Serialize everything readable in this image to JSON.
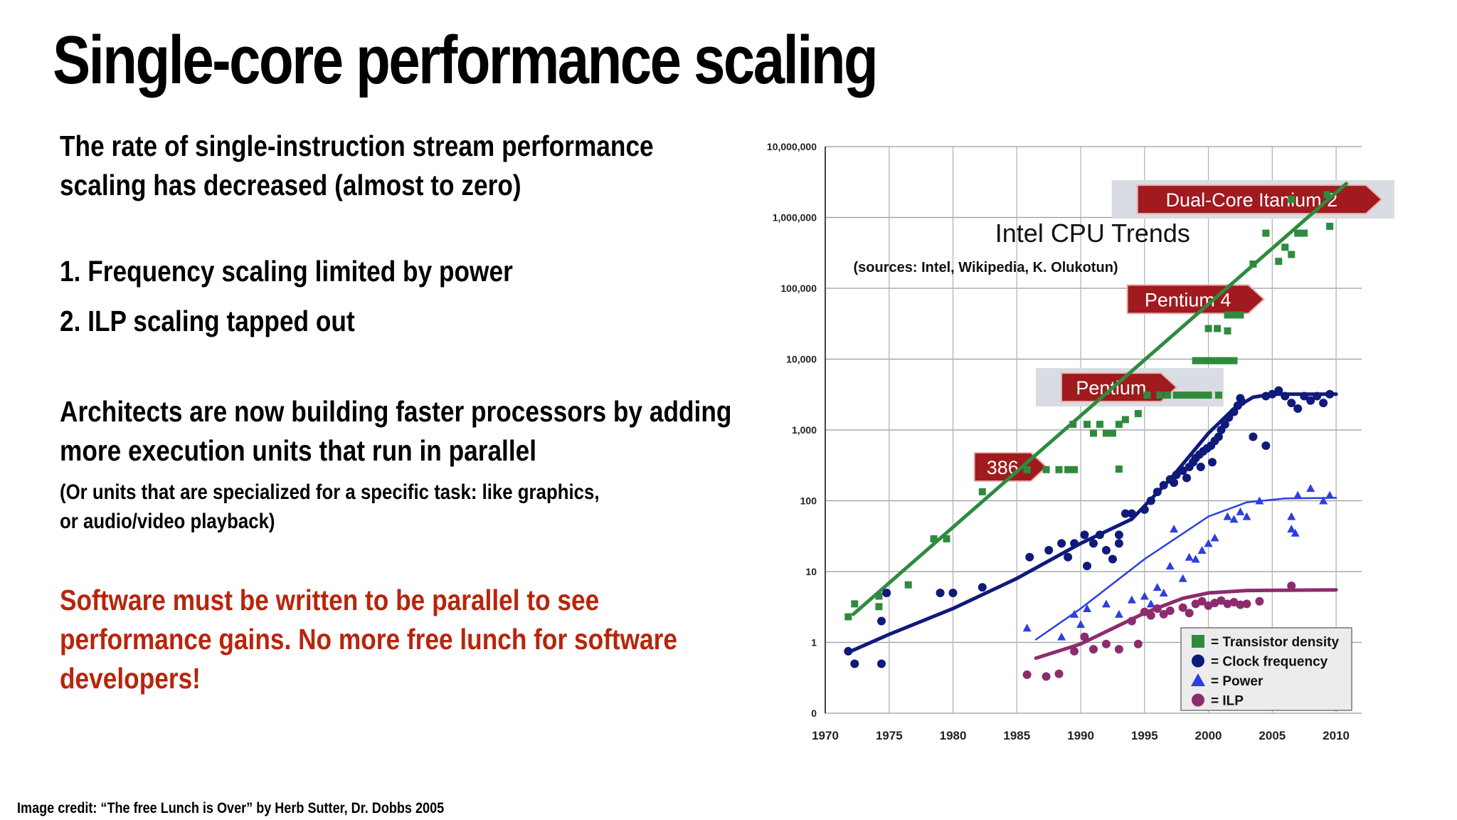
{
  "slide": {
    "title": "Single-core performance scaling",
    "para1_line1": "The rate of single-instruction stream performance",
    "para1_line2": "scaling has decreased (almost to zero)",
    "item1": "1. Frequency scaling limited by power",
    "item2": "2. ILP scaling tapped out",
    "para2_line1": "Architects are now building faster processors by adding",
    "para2_line2": "more execution units that run in parallel",
    "note_line1": "(Or units that are specialized for a specific task: like graphics,",
    "note_line2": "or audio/video playback)",
    "red_line1": "Software must be written to be parallel to see",
    "red_line2": "performance gains. No more free lunch for software",
    "red_line3": "developers!",
    "credit": "Image credit: “The free Lunch is Over” by Herb Sutter, Dr. Dobbs 2005"
  },
  "chart_data": {
    "type": "scatter",
    "title": "Intel CPU Trends",
    "subtitle": "(sources: Intel, Wikipedia, K. Olukotun)",
    "y_scale": "log",
    "xlim": [
      1970,
      2012
    ],
    "ylim": [
      0.1,
      10000000
    ],
    "x_ticks": [
      "1970",
      "1975",
      "1980",
      "1985",
      "1990",
      "1995",
      "2000",
      "2005",
      "2010"
    ],
    "y_ticks": [
      {
        "value": 0.1,
        "label": "0"
      },
      {
        "value": 1,
        "label": "1"
      },
      {
        "value": 10,
        "label": "10"
      },
      {
        "value": 100,
        "label": "100"
      },
      {
        "value": 1000,
        "label": "1,000"
      },
      {
        "value": 10000,
        "label": "10,000"
      },
      {
        "value": 100000,
        "label": "100,000"
      },
      {
        "value": 1000000,
        "label": "1,000,000"
      },
      {
        "value": 10000000,
        "label": "10,000,000"
      }
    ],
    "grid": true,
    "legend_position": "bottom-right",
    "annotations": [
      {
        "label": "386",
        "x": 1984.5,
        "y": 300,
        "boxed": false
      },
      {
        "label": "Pentium",
        "x": 1993,
        "y": 4000,
        "boxed": true
      },
      {
        "label": "Pentium 4",
        "x": 1999,
        "y": 70000,
        "boxed": false
      },
      {
        "label": "Dual-Core Itanium 2",
        "x": 2004,
        "y": 1800000,
        "boxed": true
      }
    ],
    "series": [
      {
        "name": "= Transistor density",
        "marker": "square",
        "color": "#2e8b3e",
        "trend": [
          [
            1972.2,
            2.5
          ],
          [
            2010.8,
            3000000
          ]
        ],
        "points": [
          [
            1971.8,
            2.3
          ],
          [
            1972.3,
            3.5
          ],
          [
            1974.2,
            4.5
          ],
          [
            1974.2,
            3.2
          ],
          [
            1976.5,
            6.5
          ],
          [
            1978.5,
            29
          ],
          [
            1979.5,
            29
          ],
          [
            1982.3,
            134
          ],
          [
            1985.8,
            275
          ],
          [
            1987.3,
            275
          ],
          [
            1988.3,
            275
          ],
          [
            1989,
            275
          ],
          [
            1989.5,
            275
          ],
          [
            1989.4,
            1200
          ],
          [
            1990.5,
            1200
          ],
          [
            1991,
            900
          ],
          [
            1991.5,
            1200
          ],
          [
            1992,
            900
          ],
          [
            1992.5,
            900
          ],
          [
            1993,
            1200
          ],
          [
            1993,
            280
          ],
          [
            1993.5,
            1400
          ],
          [
            1994.5,
            1700
          ],
          [
            1995.2,
            3100
          ],
          [
            1996.2,
            3100
          ],
          [
            1996.8,
            3100
          ],
          [
            1997.5,
            3100
          ],
          [
            1998,
            3100
          ],
          [
            1998.5,
            3100
          ],
          [
            1999,
            3100
          ],
          [
            1999.5,
            3100
          ],
          [
            2000,
            3100
          ],
          [
            2000.8,
            3100
          ],
          [
            1999,
            9500
          ],
          [
            1999.5,
            9500
          ],
          [
            2000,
            9500
          ],
          [
            2000.5,
            9500
          ],
          [
            2001,
            9500
          ],
          [
            2001.5,
            9500
          ],
          [
            2002,
            9500
          ],
          [
            2000,
            27000
          ],
          [
            2000.7,
            27000
          ],
          [
            2001.5,
            42000
          ],
          [
            2002,
            42000
          ],
          [
            2002.5,
            42000
          ],
          [
            2001.5,
            25000
          ],
          [
            2003.5,
            220000
          ],
          [
            2004.5,
            600000
          ],
          [
            2005.5,
            240000
          ],
          [
            2006,
            380000
          ],
          [
            2006.5,
            300000
          ],
          [
            2007,
            600000
          ],
          [
            2007.5,
            600000
          ],
          [
            2006.5,
            1800000
          ],
          [
            2009.3,
            2100000
          ],
          [
            2009.5,
            750000
          ]
        ]
      },
      {
        "name": "= Clock frequency",
        "marker": "circle",
        "color": "#0f1a7a",
        "trend": [
          [
            1972,
            0.75
          ],
          [
            1975,
            1.3
          ],
          [
            1980,
            3
          ],
          [
            1985,
            8
          ],
          [
            1990,
            25
          ],
          [
            1994,
            55
          ],
          [
            1997,
            200
          ],
          [
            2000,
            900
          ],
          [
            2002,
            2000
          ],
          [
            2003.5,
            2900
          ],
          [
            2005,
            3200
          ],
          [
            2010,
            3200
          ]
        ],
        "points": [
          [
            1971.8,
            0.75
          ],
          [
            1972.3,
            0.5
          ],
          [
            1974.4,
            0.5
          ],
          [
            1974.4,
            2
          ],
          [
            1974.8,
            5
          ],
          [
            1979,
            5
          ],
          [
            1980,
            5
          ],
          [
            1982.3,
            6
          ],
          [
            1986,
            16
          ],
          [
            1987.5,
            20
          ],
          [
            1988.5,
            25
          ],
          [
            1989,
            16
          ],
          [
            1989.5,
            25
          ],
          [
            1990.3,
            33
          ],
          [
            1990.5,
            12
          ],
          [
            1991,
            25
          ],
          [
            1991.5,
            33
          ],
          [
            1992,
            20
          ],
          [
            1992.5,
            15
          ],
          [
            1993,
            25
          ],
          [
            1993,
            33
          ],
          [
            1993.5,
            66
          ],
          [
            1994,
            66
          ],
          [
            1995,
            75
          ],
          [
            1995.5,
            100
          ],
          [
            1996,
            133
          ],
          [
            1996.5,
            166
          ],
          [
            1997,
            200
          ],
          [
            1997.5,
            233
          ],
          [
            1998,
            266
          ],
          [
            1998.5,
            300
          ],
          [
            1998.8,
            350
          ],
          [
            1999,
            400
          ],
          [
            1999.3,
            450
          ],
          [
            1999.6,
            500
          ],
          [
            1999.9,
            550
          ],
          [
            2000.2,
            600
          ],
          [
            2000.5,
            700
          ],
          [
            2000.8,
            800
          ],
          [
            2001,
            1000
          ],
          [
            2001.3,
            1200
          ],
          [
            2001.6,
            1500
          ],
          [
            2002,
            1800
          ],
          [
            2002.3,
            2200
          ],
          [
            2002.6,
            2500
          ],
          [
            2002.5,
            2800
          ],
          [
            1997.3,
            180
          ],
          [
            1998.3,
            210
          ],
          [
            1999.4,
            300
          ],
          [
            2000.3,
            350
          ],
          [
            2003.5,
            800
          ],
          [
            2004.5,
            600
          ],
          [
            2004.5,
            3000
          ],
          [
            2005,
            3200
          ],
          [
            2005.5,
            3600
          ],
          [
            2006,
            3000
          ],
          [
            2006.5,
            2400
          ],
          [
            2007,
            2000
          ],
          [
            2007.5,
            3000
          ],
          [
            2008,
            2600
          ],
          [
            2008.5,
            3000
          ],
          [
            2009,
            2400
          ],
          [
            2009.5,
            3200
          ]
        ]
      },
      {
        "name": "= Power",
        "marker": "triangle",
        "color": "#2c3fe0",
        "trend": [
          [
            1986.5,
            1.1
          ],
          [
            1990,
            3
          ],
          [
            1995,
            15
          ],
          [
            2000,
            60
          ],
          [
            2003,
            95
          ],
          [
            2006,
            108
          ],
          [
            2010,
            110
          ]
        ],
        "points": [
          [
            1985.8,
            1.6
          ],
          [
            1988.5,
            1.2
          ],
          [
            1989.5,
            2.5
          ],
          [
            1990,
            1.8
          ],
          [
            1990.5,
            3
          ],
          [
            1992,
            3.5
          ],
          [
            1993,
            2.5
          ],
          [
            1994,
            4
          ],
          [
            1995,
            4.5
          ],
          [
            1995.5,
            3.5
          ],
          [
            1996,
            6
          ],
          [
            1996.5,
            5
          ],
          [
            1997,
            12
          ],
          [
            1998,
            8
          ],
          [
            1998.5,
            16
          ],
          [
            1999,
            15
          ],
          [
            1999.5,
            20
          ],
          [
            2000,
            25
          ],
          [
            2000.5,
            30
          ],
          [
            1997.3,
            40
          ],
          [
            2001.5,
            60
          ],
          [
            2002,
            55
          ],
          [
            2002.5,
            70
          ],
          [
            2003,
            60
          ],
          [
            2004,
            100
          ],
          [
            2006.5,
            60
          ],
          [
            2006.5,
            40
          ],
          [
            2006.8,
            35
          ],
          [
            2007,
            120
          ],
          [
            2008,
            150
          ],
          [
            2009,
            100
          ],
          [
            2009.5,
            120
          ]
        ]
      },
      {
        "name": "= ILP",
        "marker": "circle",
        "color": "#8c2c6e",
        "trend": [
          [
            1986.5,
            0.6
          ],
          [
            1990,
            0.95
          ],
          [
            1995,
            2.6
          ],
          [
            1998,
            4.2
          ],
          [
            2000,
            5
          ],
          [
            2003,
            5.4
          ],
          [
            2010,
            5.5
          ]
        ],
        "points": [
          [
            1985.8,
            0.35
          ],
          [
            1987.3,
            0.33
          ],
          [
            1988.3,
            0.36
          ],
          [
            1989.5,
            0.75
          ],
          [
            1990.3,
            1.2
          ],
          [
            1991,
            0.8
          ],
          [
            1992,
            0.95
          ],
          [
            1993,
            0.8
          ],
          [
            1994,
            2
          ],
          [
            1994.5,
            0.95
          ],
          [
            1995,
            2.7
          ],
          [
            1995.5,
            2.4
          ],
          [
            1996,
            3
          ],
          [
            1996.5,
            2.5
          ],
          [
            1997,
            2.8
          ],
          [
            1998,
            3.1
          ],
          [
            1998.5,
            2.6
          ],
          [
            1999,
            3.5
          ],
          [
            1999.5,
            3.8
          ],
          [
            2000,
            3.3
          ],
          [
            2000.5,
            3.6
          ],
          [
            2001,
            3.9
          ],
          [
            2001.5,
            3.5
          ],
          [
            2002,
            3.7
          ],
          [
            2002.5,
            3.4
          ],
          [
            2003,
            3.5
          ],
          [
            2004,
            3.8
          ],
          [
            2006.5,
            6.3
          ]
        ]
      }
    ]
  }
}
